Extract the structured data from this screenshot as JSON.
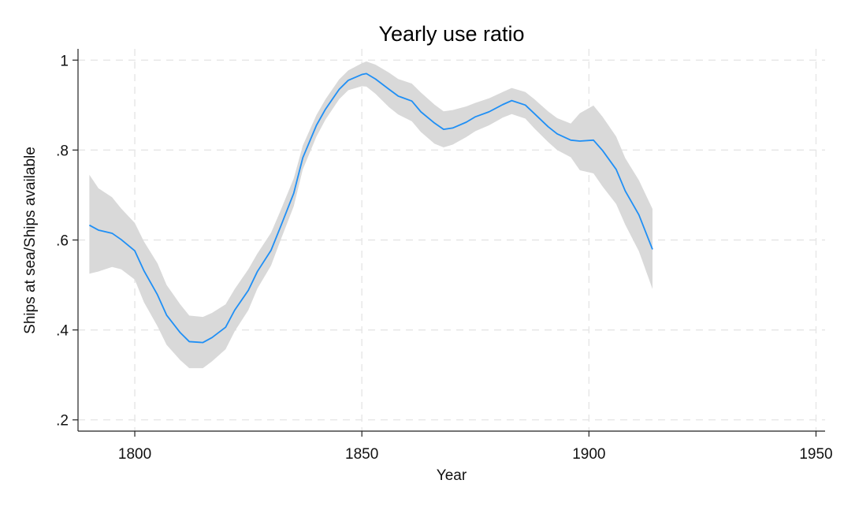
{
  "chart_data": {
    "type": "line",
    "title": "Yearly use ratio",
    "xlabel": "Year",
    "ylabel": "Ships at sea/Ships available",
    "xlim": [
      1787.5,
      1952
    ],
    "ylim": [
      0.175,
      1.025
    ],
    "x_ticks": [
      1800,
      1850,
      1900,
      1950
    ],
    "x_tick_labels": [
      "1800",
      "1850",
      "1900",
      "1950"
    ],
    "y_ticks": [
      0.2,
      0.4,
      0.6,
      0.8,
      1.0
    ],
    "y_tick_labels": [
      ".2",
      ".4",
      ".6",
      ".8",
      "1"
    ],
    "grid": true,
    "colors": {
      "line": "#1f8ff5",
      "band": "#d9d9d9"
    },
    "series": [
      {
        "name": "",
        "x": [
          1790,
          1792,
          1795,
          1797,
          1800,
          1802,
          1805,
          1807,
          1810,
          1812,
          1815,
          1817,
          1820,
          1822,
          1825,
          1827,
          1830,
          1832,
          1835,
          1837,
          1840,
          1842,
          1845,
          1847,
          1850,
          1851,
          1853,
          1856,
          1858,
          1861,
          1863,
          1866,
          1868,
          1870,
          1873,
          1875,
          1878,
          1881,
          1883,
          1886,
          1888,
          1891,
          1893,
          1896,
          1898,
          1901,
          1903,
          1906,
          1908,
          1911,
          1914
        ],
        "y": [
          0.633,
          0.622,
          0.615,
          0.601,
          0.576,
          0.532,
          0.478,
          0.433,
          0.394,
          0.374,
          0.372,
          0.383,
          0.406,
          0.444,
          0.488,
          0.53,
          0.577,
          0.627,
          0.704,
          0.783,
          0.855,
          0.891,
          0.935,
          0.955,
          0.968,
          0.97,
          0.958,
          0.935,
          0.92,
          0.909,
          0.885,
          0.86,
          0.846,
          0.849,
          0.862,
          0.874,
          0.885,
          0.901,
          0.91,
          0.9,
          0.881,
          0.852,
          0.836,
          0.822,
          0.82,
          0.822,
          0.799,
          0.757,
          0.709,
          0.656,
          0.579
        ],
        "ci_lower": [
          0.525,
          0.53,
          0.54,
          0.535,
          0.512,
          0.462,
          0.408,
          0.367,
          0.333,
          0.315,
          0.315,
          0.33,
          0.357,
          0.397,
          0.444,
          0.492,
          0.543,
          0.597,
          0.675,
          0.757,
          0.83,
          0.868,
          0.913,
          0.933,
          0.942,
          0.941,
          0.925,
          0.895,
          0.879,
          0.864,
          0.84,
          0.814,
          0.806,
          0.812,
          0.829,
          0.842,
          0.855,
          0.872,
          0.88,
          0.87,
          0.848,
          0.818,
          0.8,
          0.784,
          0.755,
          0.748,
          0.719,
          0.68,
          0.634,
          0.575,
          0.491
        ],
        "ci_upper": [
          0.745,
          0.715,
          0.695,
          0.67,
          0.638,
          0.597,
          0.548,
          0.5,
          0.457,
          0.432,
          0.429,
          0.438,
          0.457,
          0.491,
          0.535,
          0.57,
          0.616,
          0.663,
          0.737,
          0.81,
          0.878,
          0.913,
          0.957,
          0.977,
          0.993,
          0.997,
          0.99,
          0.972,
          0.958,
          0.948,
          0.928,
          0.901,
          0.886,
          0.889,
          0.897,
          0.905,
          0.915,
          0.929,
          0.938,
          0.929,
          0.913,
          0.886,
          0.871,
          0.859,
          0.882,
          0.899,
          0.874,
          0.83,
          0.782,
          0.733,
          0.669
        ]
      }
    ]
  }
}
